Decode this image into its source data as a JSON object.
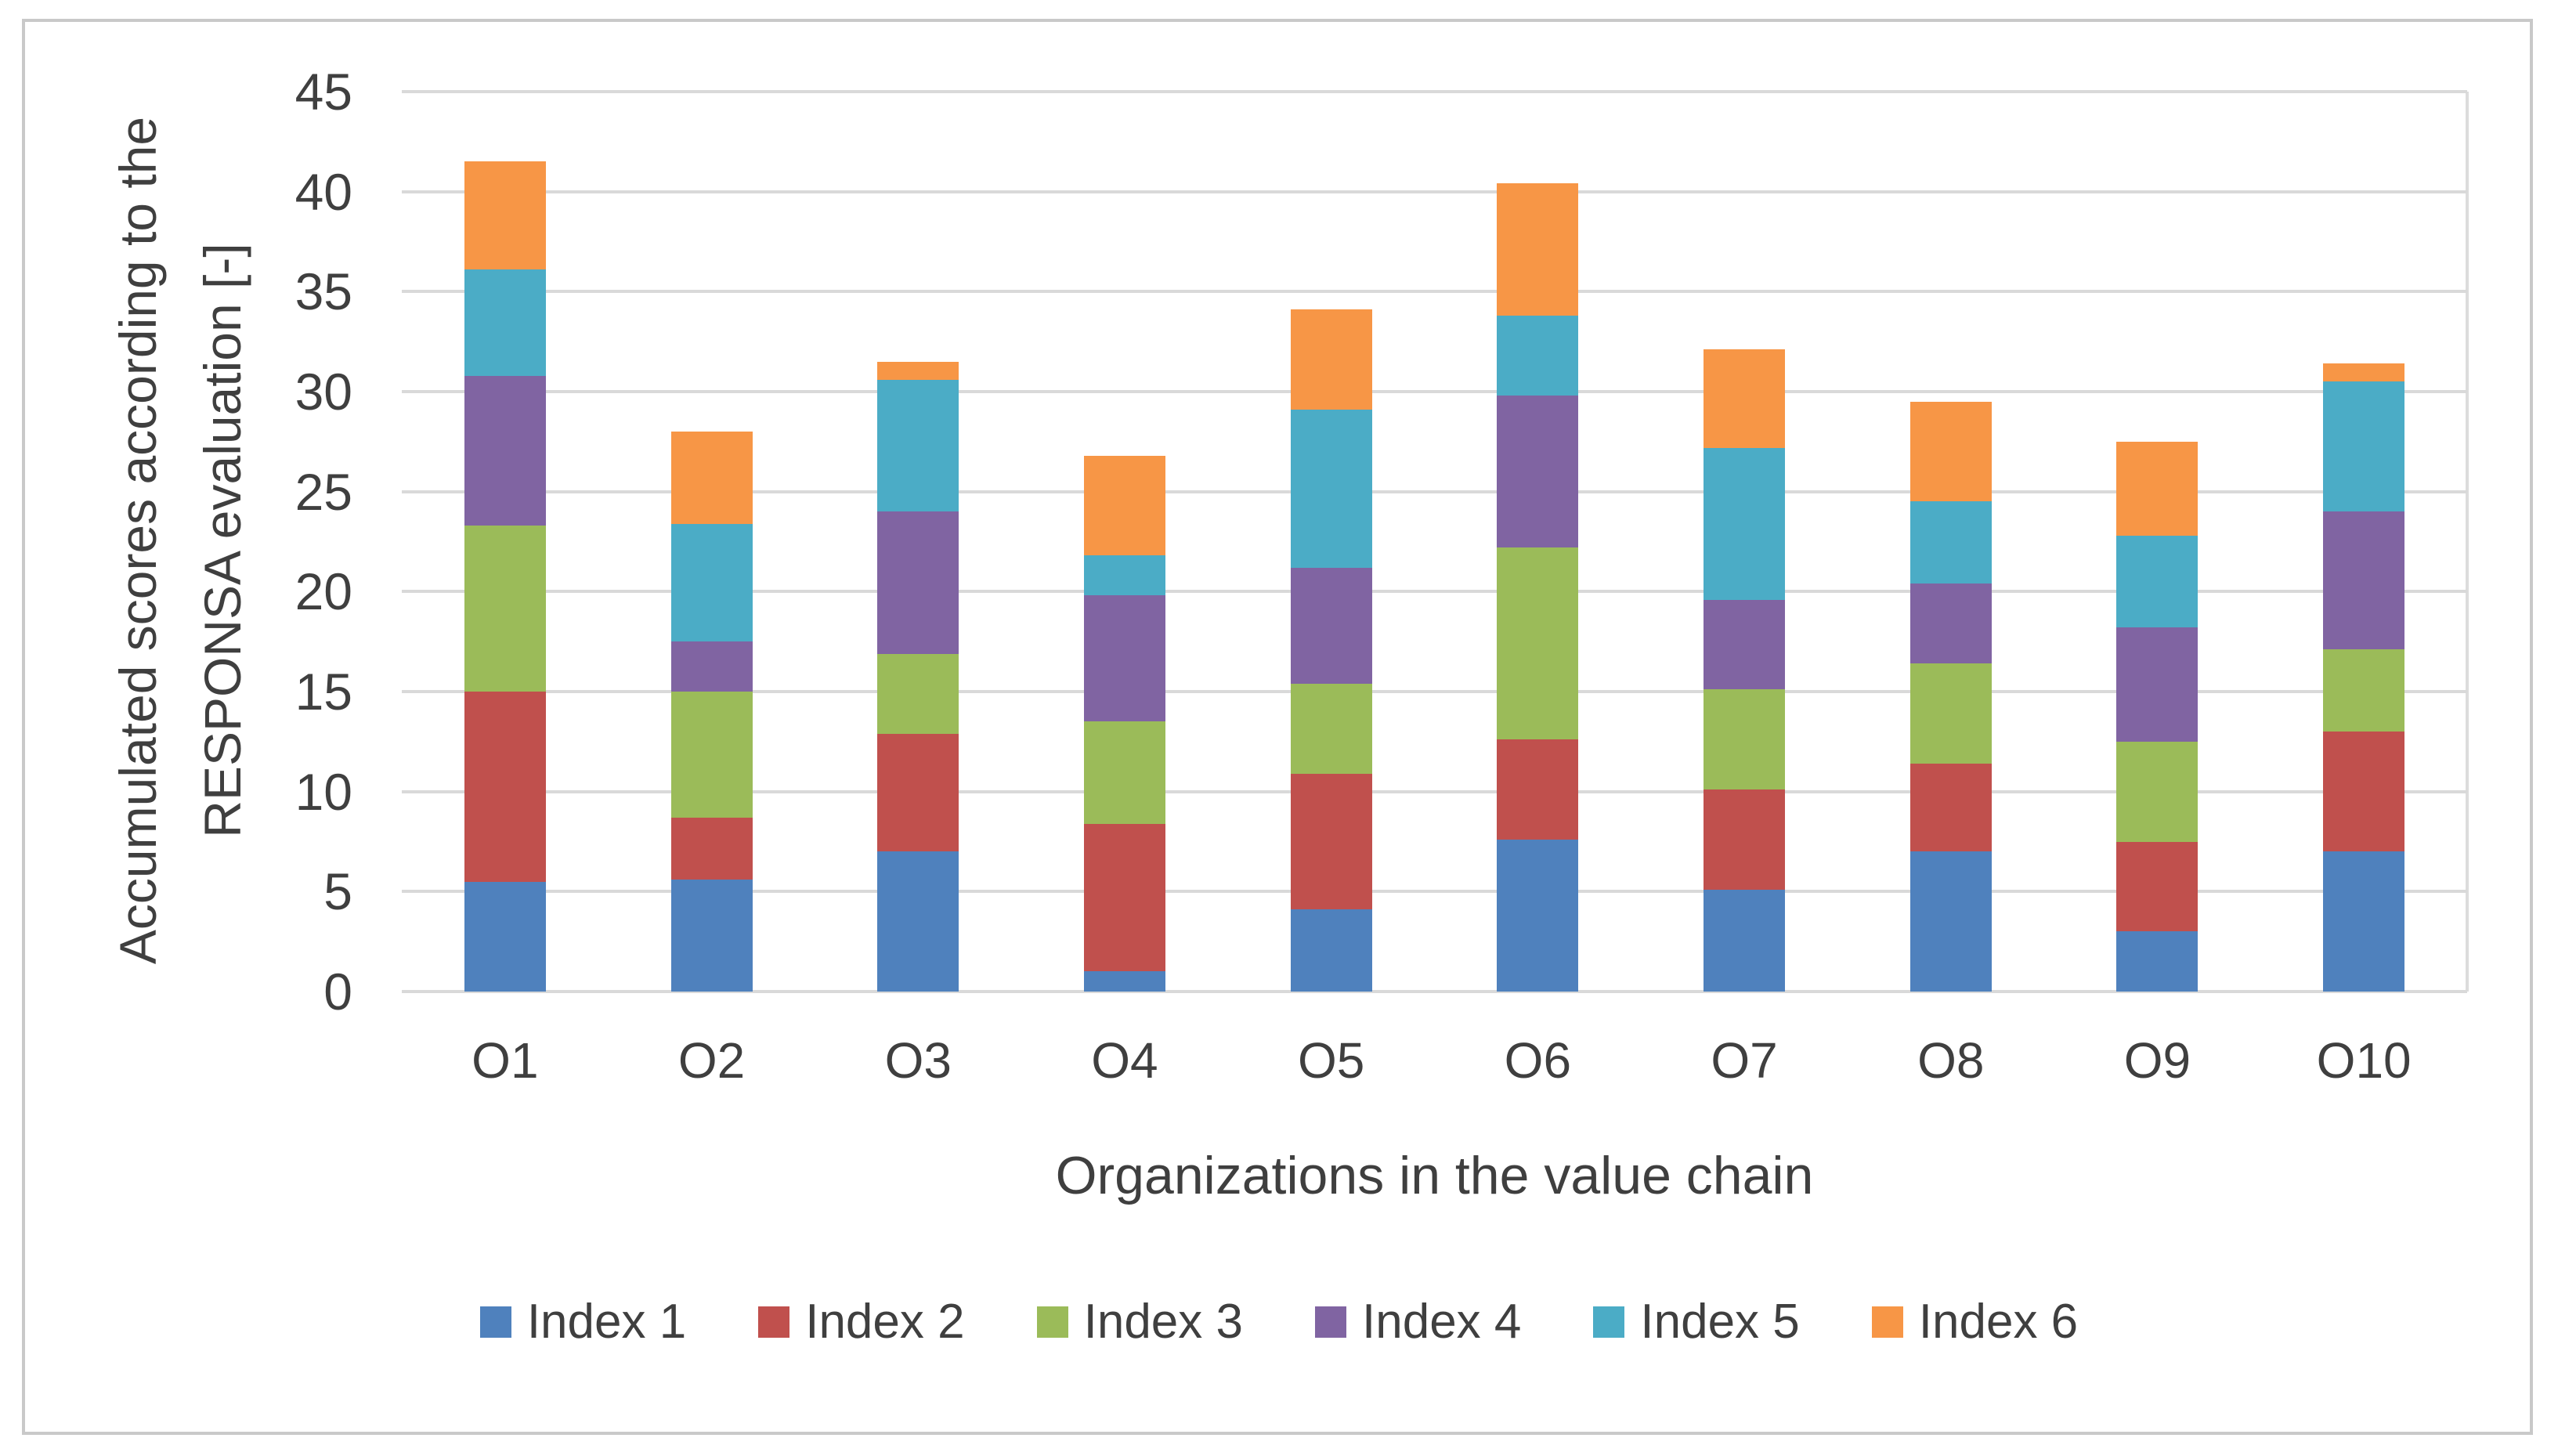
{
  "chart_data": {
    "type": "bar",
    "stacked": true,
    "categories": [
      "O1",
      "O2",
      "O3",
      "O4",
      "O5",
      "O6",
      "O7",
      "O8",
      "O9",
      "O10"
    ],
    "series": [
      {
        "name": "Index 1",
        "color": "#4F81BD",
        "values": [
          5.5,
          5.6,
          7.0,
          1.0,
          4.1,
          7.6,
          5.1,
          7.0,
          3.0,
          7.0
        ]
      },
      {
        "name": "Index 2",
        "color": "#C0504D",
        "values": [
          9.5,
          3.1,
          5.9,
          7.4,
          6.8,
          5.0,
          5.0,
          4.4,
          4.5,
          6.0
        ]
      },
      {
        "name": "Index 3",
        "color": "#9BBB59",
        "values": [
          8.3,
          6.3,
          4.0,
          5.1,
          4.5,
          9.6,
          5.0,
          5.0,
          5.0,
          4.1
        ]
      },
      {
        "name": "Index 4",
        "color": "#8064A2",
        "values": [
          7.5,
          2.5,
          7.1,
          6.3,
          5.8,
          7.6,
          4.5,
          4.0,
          5.7,
          6.9
        ]
      },
      {
        "name": "Index 5",
        "color": "#4BACC6",
        "values": [
          5.3,
          5.9,
          6.6,
          2.0,
          7.9,
          4.0,
          7.6,
          4.1,
          4.6,
          6.5
        ]
      },
      {
        "name": "Index 6",
        "color": "#F79646",
        "values": [
          5.4,
          4.6,
          0.9,
          5.0,
          5.0,
          6.6,
          4.9,
          5.0,
          4.7,
          0.9
        ]
      }
    ],
    "totals": [
      41.5,
      28.0,
      31.5,
      26.8,
      34.1,
      40.4,
      32.1,
      29.5,
      27.5,
      31.4
    ],
    "xlabel": "Organizations in the value chain",
    "ylabel_lines": [
      "Accumulated scores according to the",
      "RESPONSA evaluation [-]"
    ],
    "ylim": [
      0,
      45
    ],
    "yticks": [
      0,
      5,
      10,
      15,
      20,
      25,
      30,
      35,
      40,
      45
    ],
    "grid": "horizontal",
    "legend_position": "bottom"
  },
  "styles": {
    "text_color": "#3f3f3f",
    "grid_color": "#d9d9d9",
    "frame_color": "#c9c9c9",
    "background": "#ffffff"
  }
}
